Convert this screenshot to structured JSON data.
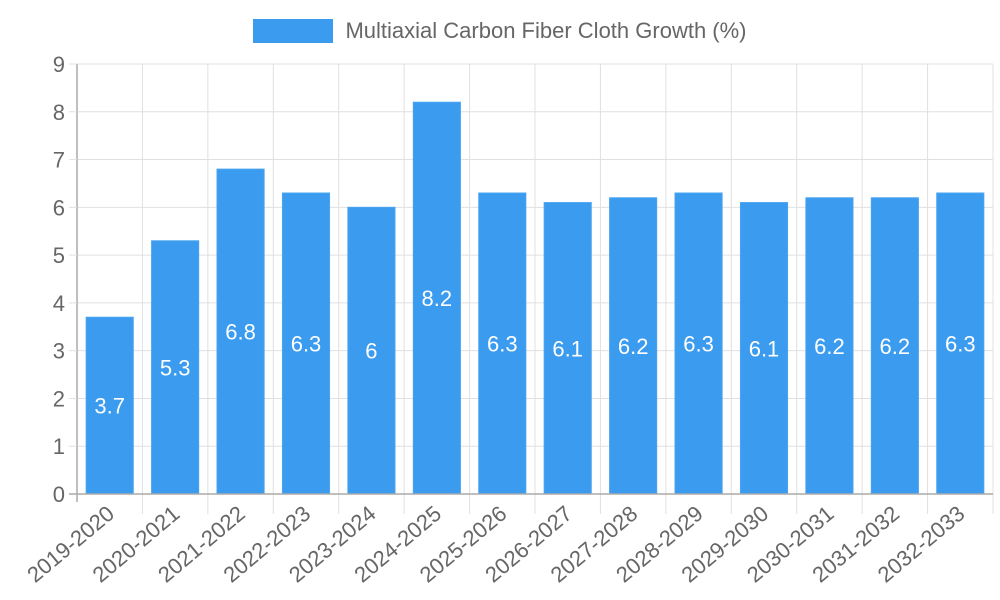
{
  "legend": {
    "label": "Multiaxial Carbon Fiber Cloth Growth (%)",
    "color": "#3a9bef"
  },
  "colors": {
    "bar": "#3a9bef",
    "bar_border": "#4aa4f0",
    "grid": "#e0e0e0",
    "axis": "#aaaaaa",
    "tick_text": "#666666",
    "data_label": "#ffffff"
  },
  "chart_data": {
    "type": "bar",
    "title": "",
    "xlabel": "",
    "ylabel": "",
    "ylim": [
      0,
      9
    ],
    "yticks": [
      0,
      1,
      2,
      3,
      4,
      5,
      6,
      7,
      8,
      9
    ],
    "grid": true,
    "legend_position": "top",
    "categories": [
      "2019-2020",
      "2020-2021",
      "2021-2022",
      "2022-2023",
      "2023-2024",
      "2024-2025",
      "2025-2026",
      "2026-2027",
      "2027-2028",
      "2028-2029",
      "2029-2030",
      "2030-2031",
      "2031-2032",
      "2032-2033"
    ],
    "series": [
      {
        "name": "Multiaxial Carbon Fiber Cloth Growth (%)",
        "values": [
          3.7,
          5.3,
          6.8,
          6.3,
          6,
          8.2,
          6.3,
          6.1,
          6.2,
          6.3,
          6.1,
          6.2,
          6.2,
          6.3
        ],
        "data_labels": [
          "3.7",
          "5.3",
          "6.8",
          "6.3",
          "6",
          "8.2",
          "6.3",
          "6.1",
          "6.2",
          "6.3",
          "6.1",
          "6.2",
          "6.2",
          "6.3"
        ]
      }
    ]
  }
}
